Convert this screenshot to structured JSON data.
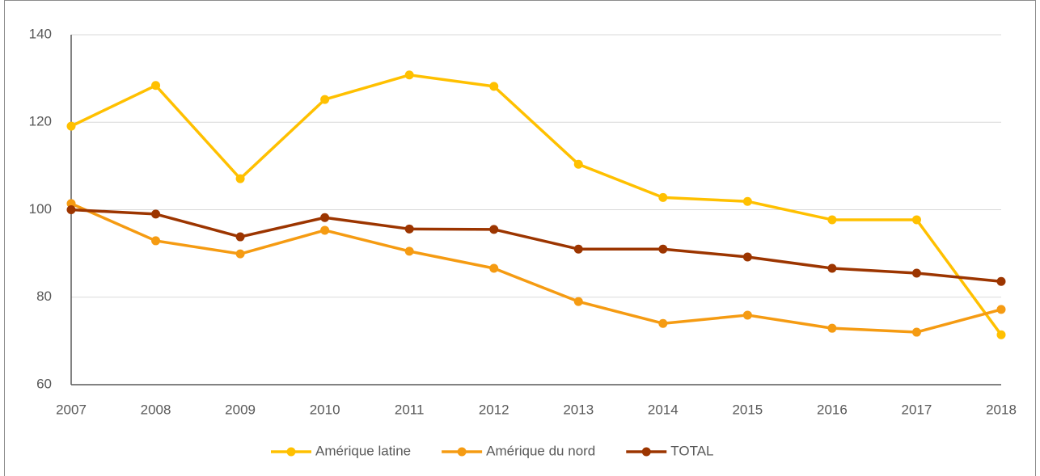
{
  "chart_data": {
    "type": "line",
    "categories": [
      "2007",
      "2008",
      "2009",
      "2010",
      "2011",
      "2012",
      "2013",
      "2014",
      "2015",
      "2016",
      "2017",
      "2018"
    ],
    "series": [
      {
        "name": "Amérique latine",
        "color": "#ffc000",
        "values": [
          119.1,
          128.4,
          107.1,
          125.2,
          130.8,
          128.2,
          110.4,
          102.8,
          101.9,
          97.7,
          97.7,
          71.4
        ]
      },
      {
        "name": "Amérique du nord",
        "color": "#f59b12",
        "values": [
          101.4,
          92.9,
          89.9,
          95.3,
          90.5,
          86.6,
          79,
          74,
          75.9,
          72.9,
          72,
          77.2
        ]
      },
      {
        "name": "TOTAL",
        "color": "#9c3500",
        "values": [
          100,
          99,
          93.8,
          98.2,
          95.6,
          95.5,
          91,
          91,
          89.2,
          86.6,
          85.5,
          83.6
        ]
      }
    ],
    "ylim": [
      60,
      140
    ],
    "yticks": [
      60,
      80,
      100,
      120,
      140
    ],
    "grid": true,
    "legend": "bottom"
  }
}
